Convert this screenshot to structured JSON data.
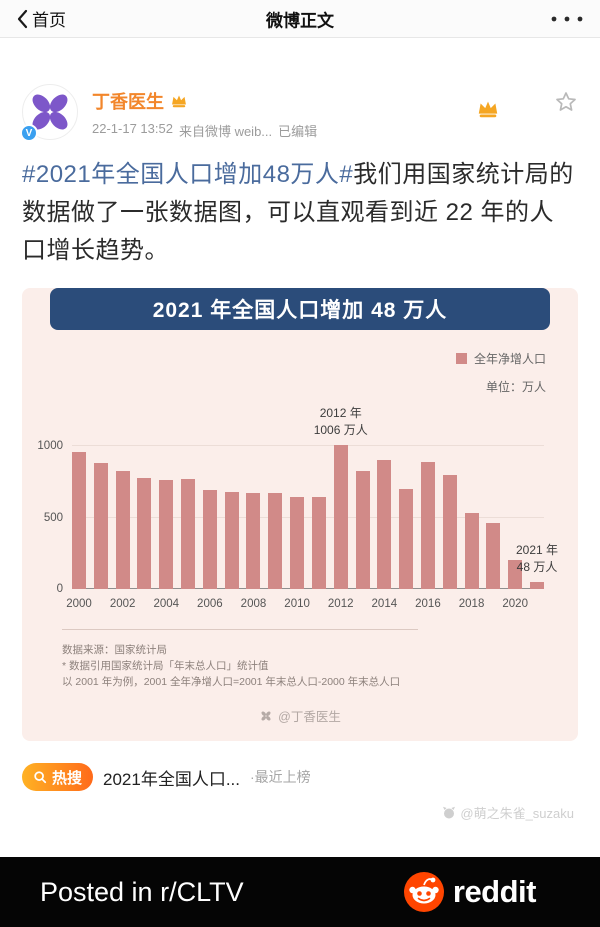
{
  "nav": {
    "back_label": "首页",
    "title": "微博正文"
  },
  "post": {
    "author": "丁香医生",
    "time": "22-1-17 13:52",
    "source": "来自微博 weib...",
    "edited": "已编辑",
    "hashtag": "#2021年全国人口增加48万人#",
    "body_text": "我们用国家统计局的数据做了一张数据图，可以直观看到近 22 年的人口增长趋势。"
  },
  "chart_data": {
    "type": "bar",
    "title": "2021 年全国人口增加 48 万人",
    "legend": "全年净增人口",
    "unit": "单位：万人",
    "ylim": [
      0,
      1050
    ],
    "y_ticks": [
      0,
      500,
      1000
    ],
    "x_tick_step": 2,
    "grid": true,
    "legend_position": "top-right",
    "categories": [
      "2000",
      "2001",
      "2002",
      "2003",
      "2004",
      "2005",
      "2006",
      "2007",
      "2008",
      "2009",
      "2010",
      "2011",
      "2012",
      "2013",
      "2014",
      "2015",
      "2016",
      "2017",
      "2018",
      "2019",
      "2020",
      "2021"
    ],
    "values": [
      957,
      884,
      826,
      774,
      761,
      768,
      692,
      681,
      673,
      672,
      641,
      644,
      1006,
      828,
      902,
      702,
      890,
      796,
      530,
      462,
      204,
      48
    ],
    "bar_color": "#d18a88",
    "annotations": [
      {
        "index": 12,
        "line1": "2012 年",
        "line2": "1006 万人"
      },
      {
        "index": 21,
        "line1": "2021 年",
        "line2": "48 万人"
      }
    ],
    "notes": [
      "数据来源：国家统计局",
      "* 数据引用国家统计局「年末总人口」统计值",
      "以 2001 年为例，2001 全年净增人口=2001 年末总人口-2000 年末总人口"
    ],
    "watermark": "@丁香医生"
  },
  "hot_search": {
    "badge": "热搜",
    "topic": "2021年全国人口...",
    "suffix": "·最近上榜"
  },
  "uploader_watermark": "@萌之朱雀_suzaku",
  "footer": {
    "posted_in": "Posted in r/CLTV",
    "brand": "reddit"
  },
  "colors": {
    "hashtag_blue": "#4a6b9d",
    "author_orange": "#f2862b",
    "banner_navy": "#2b4c7a",
    "card_pink": "#fbeeea",
    "bar_rose": "#d18a88",
    "hot_badge_orange": "#ff6a1a",
    "reddit_orange": "#ff4500"
  }
}
